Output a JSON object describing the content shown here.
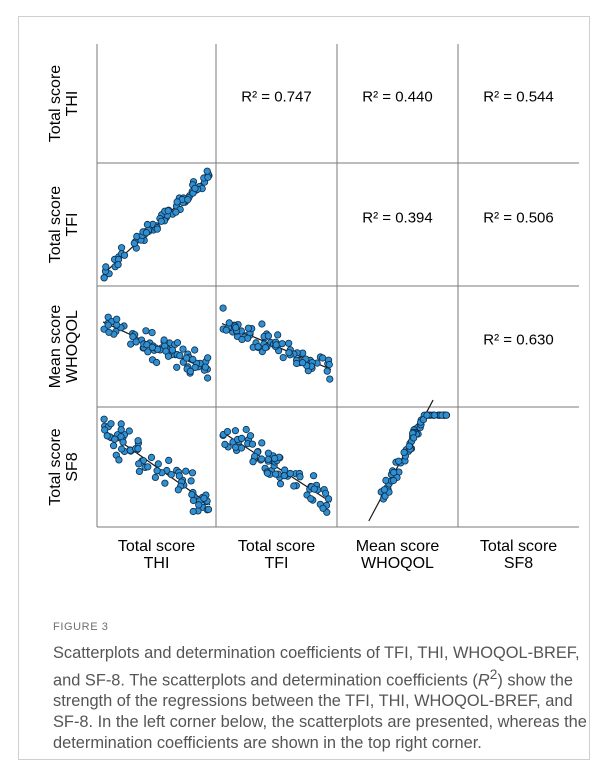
{
  "figure": {
    "label": "FIGURE 3",
    "caption_title": "Scatterplots and determination coefficients of TFI, THI, WHOQOL-BREF, and SF-8.",
    "caption_part1": "The scatterplots and determination coefficients (",
    "caption_r2_symbol": "R",
    "caption_r2_sup": "2",
    "caption_part2": ") show the strength of the regressions between the TFI, THI, WHOQOL-BREF, and SF-8. In the left corner below, the scatterplots are presented, whereas the determination coefficients are shown in the top right corner."
  },
  "chart_data": {
    "type": "scatter",
    "variables": [
      {
        "key": "THI",
        "row_label": [
          "Total score",
          "THI"
        ],
        "col_label": [
          "Total score",
          "THI"
        ]
      },
      {
        "key": "TFI",
        "row_label": [
          "Total score",
          "TFI"
        ],
        "col_label": [
          "Total score",
          "TFI"
        ]
      },
      {
        "key": "WHOQOL",
        "row_label": [
          "Mean score",
          "WHOQOL"
        ],
        "col_label": [
          "Mean score",
          "WHOQOL"
        ]
      },
      {
        "key": "SF8",
        "row_label": [
          "Total score",
          "SF8"
        ],
        "col_label": [
          "Total score",
          "SF8"
        ]
      }
    ],
    "r2": [
      {
        "row": 0,
        "col": 1,
        "text": "R² = 0.747"
      },
      {
        "row": 0,
        "col": 2,
        "text": "R² = 0.440"
      },
      {
        "row": 0,
        "col": 3,
        "text": "R² = 0.544"
      },
      {
        "row": 1,
        "col": 2,
        "text": "R² = 0.394"
      },
      {
        "row": 1,
        "col": 3,
        "text": "R² = 0.506"
      },
      {
        "row": 2,
        "col": 3,
        "text": "R² = 0.630"
      }
    ],
    "panels": [
      {
        "row": 1,
        "col": 0,
        "slope": 0.9,
        "noise": 0.13,
        "n": 75,
        "seed": 11
      },
      {
        "row": 2,
        "col": 0,
        "slope": -0.45,
        "noise": 0.17,
        "n": 75,
        "seed": 23
      },
      {
        "row": 2,
        "col": 1,
        "slope": -0.42,
        "noise": 0.17,
        "n": 75,
        "seed": 37
      },
      {
        "row": 3,
        "col": 0,
        "slope": -0.7,
        "noise": 0.22,
        "n": 75,
        "seed": 41
      },
      {
        "row": 3,
        "col": 1,
        "slope": -0.65,
        "noise": 0.22,
        "n": 75,
        "seed": 53
      },
      {
        "row": 3,
        "col": 2,
        "slope": 1.9,
        "noise": 0.12,
        "n": 75,
        "seed": 67
      }
    ],
    "grid": true,
    "legend": "none"
  },
  "colors": {
    "point_fill": "#2f8fd0",
    "point_stroke": "#0d2d4a",
    "line": "#1a1a1a",
    "grid": "#7a7a7a"
  }
}
